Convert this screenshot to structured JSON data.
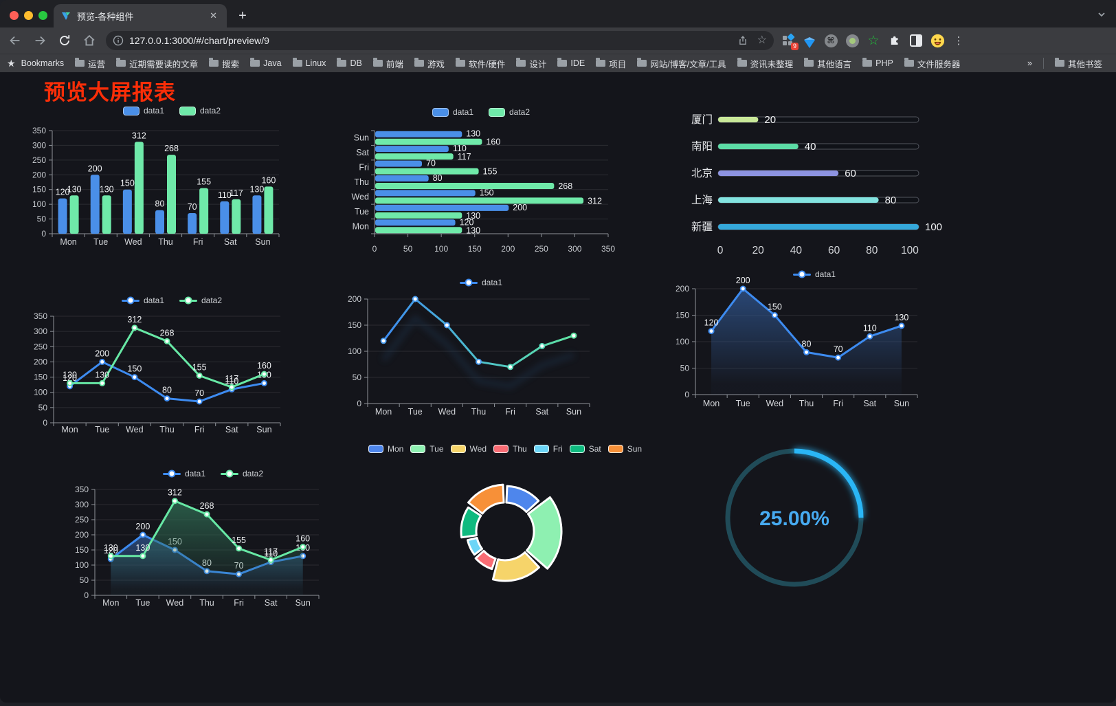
{
  "browser": {
    "tab_title": "预览-各种组件",
    "new_tab_label": "+",
    "url": "127.0.0.1:3000/#/chart/preview/9",
    "extensions_badge": "9",
    "bookmarks_bar": {
      "star_label": "Bookmarks",
      "folders": [
        "运营",
        "近期需要读的文章",
        "搜索",
        "Java",
        "Linux",
        "DB",
        "前端",
        "游戏",
        "软件/硬件",
        "设计",
        "IDE",
        "项目",
        "网站/博客/文章/工具",
        "资讯未整理",
        "其他语言",
        "PHP",
        "文件服务器"
      ],
      "overflow": "»",
      "other": "其他书签"
    }
  },
  "page": {
    "title": "预览大屏报表"
  },
  "chart_data": [
    {
      "id": "bar-vertical",
      "type": "bar",
      "legend_position": "top",
      "grid": true,
      "labels": true,
      "categories": [
        "Mon",
        "Tue",
        "Wed",
        "Thu",
        "Fri",
        "Sat",
        "Sun"
      ],
      "series": [
        {
          "name": "data1",
          "color": "#4a8fe8",
          "values": [
            120,
            200,
            150,
            80,
            70,
            110,
            130
          ]
        },
        {
          "name": "data2",
          "color": "#6fe9a9",
          "values": [
            130,
            130,
            312,
            268,
            155,
            117,
            160
          ]
        }
      ],
      "ylim": [
        0,
        350
      ],
      "ytick_step": 50
    },
    {
      "id": "bar-horizontal",
      "type": "bar-horizontal",
      "legend_position": "top",
      "labels": true,
      "categories": [
        "Sun",
        "Sat",
        "Fri",
        "Thu",
        "Wed",
        "Tue",
        "Mon"
      ],
      "series": [
        {
          "name": "data1",
          "color": "#4a8fe8",
          "values": [
            130,
            110,
            70,
            80,
            150,
            200,
            120
          ]
        },
        {
          "name": "data2",
          "color": "#6fe9a9",
          "values": [
            160,
            117,
            155,
            268,
            312,
            130,
            130
          ]
        }
      ],
      "xlim": [
        0,
        350
      ],
      "xtick_step": 50
    },
    {
      "id": "progress",
      "type": "progress-bars",
      "xlim": [
        0,
        100
      ],
      "xticks": [
        0,
        20,
        40,
        60,
        80,
        100
      ],
      "items": [
        {
          "label": "厦门",
          "value": 20,
          "color": "#c9e899"
        },
        {
          "label": "南阳",
          "value": 40,
          "color": "#5cdca6"
        },
        {
          "label": "北京",
          "value": 60,
          "color": "#8d93e1"
        },
        {
          "label": "上海",
          "value": 80,
          "color": "#83e3e0"
        },
        {
          "label": "新疆",
          "value": 100,
          "color": "#35a8da"
        }
      ]
    },
    {
      "id": "line-two",
      "type": "line",
      "legend_position": "top",
      "labels": true,
      "categories": [
        "Mon",
        "Tue",
        "Wed",
        "Thu",
        "Fri",
        "Sat",
        "Sun"
      ],
      "series": [
        {
          "name": "data1",
          "color": "#3d8bf0",
          "values": [
            120,
            200,
            150,
            80,
            70,
            110,
            130
          ]
        },
        {
          "name": "data2",
          "color": "#67e8a5",
          "values": [
            130,
            130,
            312,
            268,
            155,
            117,
            160
          ]
        }
      ],
      "ylim": [
        0,
        350
      ],
      "ytick_step": 50
    },
    {
      "id": "line-gradient",
      "type": "line",
      "legend_position": "top",
      "labels": false,
      "gradient": true,
      "categories": [
        "Mon",
        "Tue",
        "Wed",
        "Thu",
        "Fri",
        "Sat",
        "Sun"
      ],
      "series": [
        {
          "name": "data1",
          "color": "#3d8bf0",
          "color_end": "#5fe3a1",
          "values": [
            120,
            200,
            150,
            80,
            70,
            110,
            130
          ]
        }
      ],
      "ylim": [
        0,
        200
      ],
      "ytick_step": 50
    },
    {
      "id": "area-blue",
      "type": "area",
      "legend_position": "top",
      "labels": true,
      "categories": [
        "Mon",
        "Tue",
        "Wed",
        "Thu",
        "Fri",
        "Sat",
        "Sun"
      ],
      "series": [
        {
          "name": "data1",
          "color": "#3d8bf0",
          "area_color": "#2f548c",
          "values": [
            120,
            200,
            150,
            80,
            70,
            110,
            130
          ]
        }
      ],
      "ylim": [
        0,
        200
      ],
      "ytick_step": 50
    },
    {
      "id": "area-two",
      "type": "area",
      "legend_position": "top",
      "labels": true,
      "categories": [
        "Mon",
        "Tue",
        "Wed",
        "Thu",
        "Fri",
        "Sat",
        "Sun"
      ],
      "series": [
        {
          "name": "data1",
          "color": "#3d8bf0",
          "area_color": "#2f548c",
          "values": [
            120,
            200,
            150,
            80,
            70,
            110,
            130
          ]
        },
        {
          "name": "data2",
          "color": "#67e8a5",
          "area_color": "#2f6b52",
          "values": [
            130,
            130,
            312,
            268,
            155,
            117,
            160
          ]
        }
      ],
      "ylim": [
        0,
        350
      ],
      "ytick_step": 50
    },
    {
      "id": "donut",
      "type": "pie",
      "style": "rose-donut",
      "legend_position": "top",
      "categories": [
        "Mon",
        "Tue",
        "Wed",
        "Thu",
        "Fri",
        "Sat",
        "Sun"
      ],
      "values": [
        120,
        200,
        150,
        80,
        70,
        110,
        130
      ],
      "colors": [
        "#4e86ec",
        "#8ef0b1",
        "#f6d46a",
        "#f96c74",
        "#6cd5f7",
        "#0fba7f",
        "#f79038"
      ]
    },
    {
      "id": "gauge",
      "type": "gauge",
      "value": 25,
      "label": "25.00%",
      "color": "#29b6f6",
      "track_color": "#204b58"
    }
  ]
}
